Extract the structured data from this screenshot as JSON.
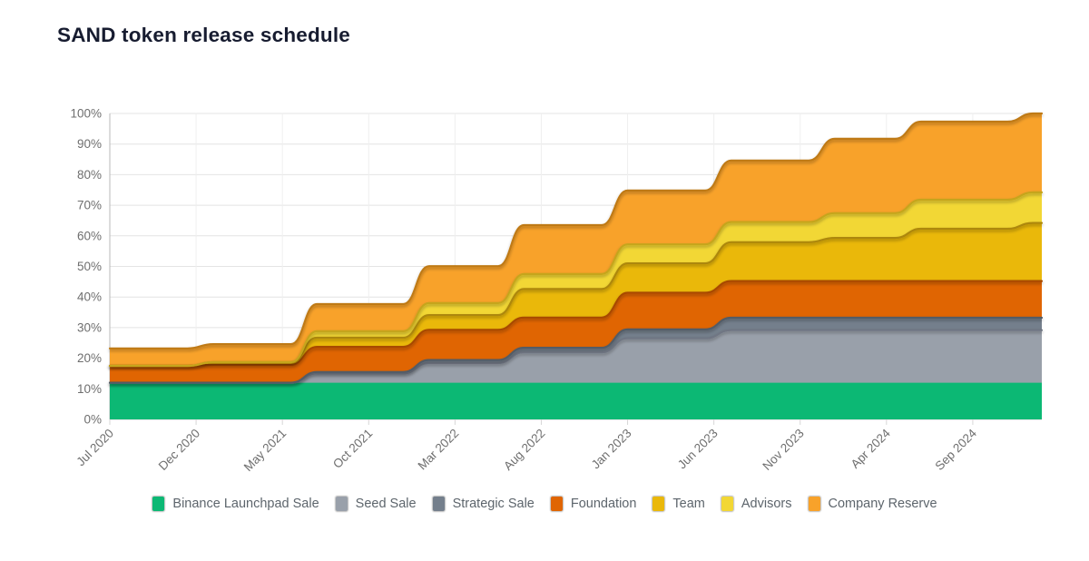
{
  "title": "SAND token release schedule",
  "chart_data": {
    "type": "area",
    "stacked": true,
    "unit": "%",
    "grid": true,
    "legend_position": "bottom",
    "ylim": [
      0,
      100
    ],
    "y_ticks": [
      0,
      10,
      20,
      30,
      40,
      50,
      60,
      70,
      80,
      90,
      100
    ],
    "y_tick_labels": [
      "0%",
      "10%",
      "20%",
      "30%",
      "40%",
      "50%",
      "60%",
      "70%",
      "80%",
      "90%",
      "100%"
    ],
    "x_tick_labels": [
      "Jul 2020",
      "Dec 2020",
      "May 2021",
      "Oct 2021",
      "Mar 2022",
      "Aug 2022",
      "Jan 2023",
      "Jun 2023",
      "Nov 2023",
      "Apr 2024",
      "Sep 2024"
    ],
    "x_tick_months": [
      0,
      5,
      10,
      15,
      20,
      25,
      30,
      35,
      40,
      45,
      50
    ],
    "x_range_months": [
      0,
      54
    ],
    "step_ramp_months": 1.5,
    "axis_text_color": "#6e6e6e",
    "series": [
      {
        "name": "Binance Launchpad Sale",
        "color": "#0cb874",
        "edge": "#0a8753",
        "final_pct": 12.0
      },
      {
        "name": "Seed Sale",
        "color": "#99a0aa",
        "edge": "#6f7683",
        "final_pct": 17.18
      },
      {
        "name": "Strategic Sale",
        "color": "#747f8c",
        "edge": "#525b66",
        "final_pct": 4.04
      },
      {
        "name": "Foundation",
        "color": "#e06502",
        "edge": "#a84a02",
        "final_pct": 12.0
      },
      {
        "name": "Team",
        "color": "#eab80a",
        "edge": "#ad8708",
        "final_pct": 19.0
      },
      {
        "name": "Advisors",
        "color": "#f2d735",
        "edge": "#c5a51c",
        "final_pct": 10.0
      },
      {
        "name": "Company Reserve",
        "color": "#f8a22a",
        "edge": "#bf7a14",
        "final_pct": 25.78
      }
    ],
    "steps": [
      {
        "date": "Jul 2020",
        "month_index": 0,
        "values": [
          12,
          0,
          0,
          5.5,
          0,
          0,
          5.7
        ]
      },
      {
        "date": "Jan 2021",
        "month_index": 6,
        "values": [
          12,
          0,
          0,
          5.8,
          0.9,
          0,
          5.9
        ]
      },
      {
        "date": "Jun 2021",
        "month_index": 12,
        "values": [
          12,
          3.0,
          0.5,
          8.2,
          3.0,
          2.1,
          8.9
        ]
      },
      {
        "date": "Jan 2022",
        "month_index": 18.5,
        "values": [
          12,
          6.4,
          1.0,
          9.9,
          4.8,
          3.9,
          12.1
        ]
      },
      {
        "date": "Jul 2022",
        "month_index": 24,
        "values": [
          12,
          9.9,
          1.5,
          9.9,
          9.3,
          4.9,
          16.0
        ]
      },
      {
        "date": "Jan 2023",
        "month_index": 30,
        "values": [
          12,
          14.5,
          2.9,
          12.0,
          9.6,
          6.2,
          17.6
        ]
      },
      {
        "date": "Jul 2023",
        "month_index": 36,
        "values": [
          12,
          17.18,
          4.04,
          12.0,
          12.7,
          6.6,
          20.1
        ]
      },
      {
        "date": "Jan 2024",
        "month_index": 42,
        "values": [
          12,
          17.18,
          4.04,
          12.0,
          14.1,
          8.1,
          24.3
        ]
      },
      {
        "date": "Jun 2024",
        "month_index": 47,
        "values": [
          12,
          17.18,
          4.04,
          12.0,
          17.1,
          9.5,
          25.5
        ]
      },
      {
        "date": "Dec 2024",
        "month_index": 53.5,
        "values": [
          12,
          17.18,
          4.04,
          12.0,
          19.0,
          10.0,
          25.78
        ]
      }
    ]
  }
}
